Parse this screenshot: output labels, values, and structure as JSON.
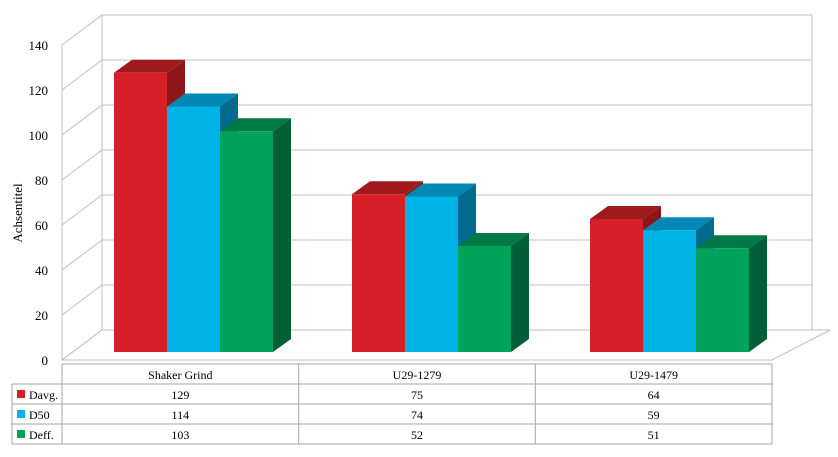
{
  "chart_data": {
    "type": "bar",
    "categories": [
      "Shaker Grind",
      "U29-1279",
      "U29-1479"
    ],
    "series": [
      {
        "name": "Davg.",
        "values": [
          129,
          75,
          64
        ],
        "color": "#d71f28",
        "top": "#9e1a1c",
        "side": "#8f1518"
      },
      {
        "name": "D50",
        "values": [
          114,
          74,
          59
        ],
        "color": "#00b3e6",
        "top": "#0088b4",
        "side": "#006a8f"
      },
      {
        "name": "Deff.",
        "values": [
          103,
          52,
          51
        ],
        "color": "#00a25c",
        "top": "#007a45",
        "side": "#005f36"
      }
    ],
    "ylabel": "Achsentitel",
    "ylim": [
      0,
      140
    ],
    "yticks": [
      0,
      20,
      40,
      60,
      80,
      100,
      120,
      140
    ],
    "grid": true,
    "legend": "data-table",
    "data_table": true
  }
}
